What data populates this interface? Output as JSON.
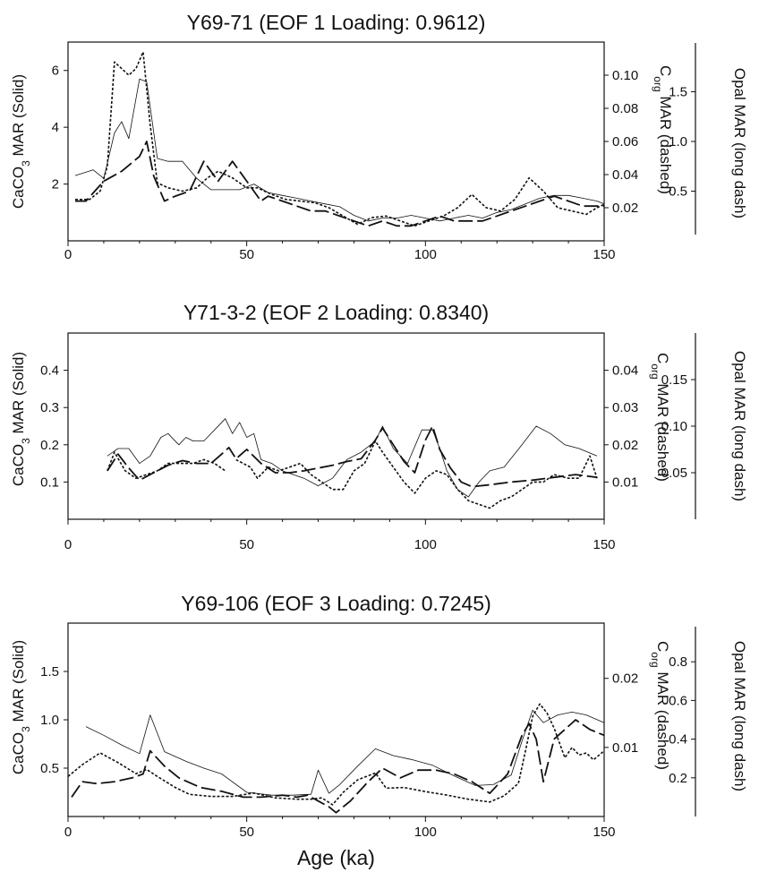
{
  "chart_data": [
    {
      "type": "line",
      "title": "Y69-71  (EOF 1 Loading:  0.9612)",
      "xlim": [
        0,
        150
      ],
      "xticks": [
        0,
        50,
        100,
        150
      ],
      "axes": {
        "left": {
          "label": "CaCO3 MAR  (Solid)",
          "ticks": [
            2,
            4,
            6
          ],
          "range": [
            0,
            7
          ]
        },
        "right1": {
          "label": "Corg  MAR (dashed)",
          "ticks": [
            0.02,
            0.04,
            0.06,
            0.08,
            0.1
          ],
          "tick_labels": [
            "0.02",
            "0.04",
            "0.06",
            "0.08",
            "0.10"
          ],
          "range": [
            0,
            0.12
          ]
        },
        "right2": {
          "label": "Opal  MAR  (long dash)",
          "ticks": [
            0.5,
            1.0,
            1.5
          ],
          "tick_labels": [
            "0.5",
            "1.0",
            "1.5"
          ],
          "range": [
            0,
            2.0
          ]
        }
      },
      "series": [
        {
          "style": "solid",
          "axis": "left",
          "x": [
            2,
            7,
            10,
            13,
            15,
            17,
            20,
            22,
            25,
            28,
            32,
            36,
            40,
            44,
            48,
            52,
            56,
            60,
            64,
            68,
            72,
            76,
            80,
            84,
            88,
            92,
            96,
            100,
            104,
            108,
            112,
            116,
            120,
            124,
            128,
            132,
            136,
            140,
            144,
            148,
            150
          ],
          "y": [
            2.3,
            2.5,
            2.2,
            3.8,
            4.2,
            3.6,
            5.7,
            5.6,
            2.9,
            2.8,
            2.8,
            2.2,
            1.8,
            1.8,
            1.8,
            2.0,
            1.7,
            1.6,
            1.5,
            1.4,
            1.3,
            1.2,
            0.9,
            0.7,
            0.8,
            0.8,
            0.9,
            0.8,
            0.7,
            0.8,
            0.9,
            0.8,
            1.0,
            1.1,
            1.3,
            1.5,
            1.6,
            1.6,
            1.5,
            1.4,
            1.3
          ]
        },
        {
          "style": "dotted",
          "axis": "right1",
          "x": [
            2,
            6,
            9,
            11,
            13,
            15,
            17,
            19,
            21,
            23,
            25,
            28,
            32,
            36,
            39,
            42,
            46,
            50,
            53,
            57,
            61,
            65,
            69,
            73,
            77,
            81,
            85,
            89,
            93,
            97,
            101,
            105,
            109,
            113,
            117,
            121,
            125,
            129,
            133,
            137,
            141,
            145,
            148,
            150
          ],
          "y": [
            0.025,
            0.025,
            0.03,
            0.045,
            0.108,
            0.104,
            0.1,
            0.104,
            0.114,
            0.07,
            0.035,
            0.032,
            0.03,
            0.032,
            0.038,
            0.042,
            0.038,
            0.032,
            0.032,
            0.028,
            0.025,
            0.024,
            0.023,
            0.02,
            0.015,
            0.01,
            0.014,
            0.015,
            0.012,
            0.009,
            0.012,
            0.015,
            0.02,
            0.028,
            0.02,
            0.018,
            0.025,
            0.038,
            0.03,
            0.02,
            0.018,
            0.016,
            0.02,
            0.022
          ]
        },
        {
          "style": "longdash",
          "axis": "right2",
          "x": [
            2,
            5,
            10,
            15,
            20,
            22,
            24,
            27,
            30,
            34,
            38,
            42,
            46,
            50,
            54,
            56,
            60,
            64,
            68,
            72,
            76,
            80,
            84,
            88,
            92,
            96,
            100,
            104,
            108,
            112,
            116,
            120,
            124,
            128,
            132,
            136,
            140,
            144,
            148,
            150
          ],
          "y": [
            0.4,
            0.4,
            0.6,
            0.7,
            0.85,
            1.0,
            0.65,
            0.4,
            0.45,
            0.5,
            0.8,
            0.6,
            0.8,
            0.6,
            0.4,
            0.45,
            0.4,
            0.35,
            0.3,
            0.3,
            0.25,
            0.2,
            0.15,
            0.2,
            0.15,
            0.15,
            0.2,
            0.25,
            0.2,
            0.2,
            0.2,
            0.25,
            0.3,
            0.35,
            0.4,
            0.45,
            0.4,
            0.35,
            0.35,
            0.35
          ]
        }
      ]
    },
    {
      "type": "line",
      "title": "Y71-3-2   (EOF 2 Loading:  0.8340)",
      "xlim": [
        0,
        150
      ],
      "xticks": [
        0,
        50,
        100,
        150
      ],
      "axes": {
        "left": {
          "label": "CaCO3 MAR  (Solid)",
          "ticks": [
            0.1,
            0.2,
            0.3,
            0.4
          ],
          "tick_labels": [
            "0.1",
            "0.2",
            "0.3",
            "0.4"
          ],
          "range": [
            0,
            0.5
          ]
        },
        "right1": {
          "label": "Corg  MAR (dashed)",
          "ticks": [
            0.01,
            0.02,
            0.03,
            0.04
          ],
          "tick_labels": [
            "0.01",
            "0.02",
            "0.03",
            "0.04"
          ],
          "range": [
            0,
            0.05
          ]
        },
        "right2": {
          "label": "Opal  MAR  (long dash)",
          "ticks": [
            0.05,
            0.1,
            0.15
          ],
          "tick_labels": [
            "0.05",
            "0.10",
            "0.15"
          ],
          "range": [
            0,
            0.2
          ]
        }
      },
      "series": [
        {
          "style": "solid",
          "axis": "left",
          "x": [
            11,
            14,
            17,
            20,
            23,
            26,
            28,
            31,
            33,
            35,
            38,
            41,
            44,
            46,
            48,
            50,
            52,
            54,
            57,
            60,
            63,
            66,
            70,
            74,
            78,
            82,
            86,
            88,
            91,
            95,
            99,
            102,
            104,
            106,
            109,
            112,
            115,
            118,
            122,
            127,
            131,
            135,
            139,
            143,
            148
          ],
          "y": [
            0.17,
            0.19,
            0.19,
            0.15,
            0.17,
            0.22,
            0.23,
            0.2,
            0.22,
            0.21,
            0.21,
            0.24,
            0.27,
            0.23,
            0.26,
            0.22,
            0.23,
            0.16,
            0.15,
            0.13,
            0.12,
            0.11,
            0.09,
            0.11,
            0.16,
            0.18,
            0.21,
            0.25,
            0.19,
            0.15,
            0.24,
            0.24,
            0.19,
            0.13,
            0.08,
            0.06,
            0.1,
            0.13,
            0.14,
            0.2,
            0.25,
            0.23,
            0.2,
            0.19,
            0.17
          ]
        },
        {
          "style": "dotted",
          "axis": "right1",
          "x": [
            11,
            13,
            16,
            19,
            22,
            25,
            28,
            31,
            35,
            38,
            41,
            44
          ],
          "y": [
            0.013,
            0.018,
            0.013,
            0.011,
            0.012,
            0.013,
            0.015,
            0.015,
            0.015,
            0.016,
            0.015,
            0.013
          ]
        },
        {
          "style": "dotted",
          "axis": "right1",
          "x": [
            47,
            49,
            51,
            53,
            56,
            59,
            62,
            65,
            68,
            71,
            74,
            77,
            80,
            83,
            86,
            88,
            91,
            94,
            97,
            100,
            103,
            106,
            109,
            112,
            115,
            118,
            121,
            124,
            127,
            130,
            133,
            136,
            140,
            143,
            146,
            148
          ],
          "y": [
            0.016,
            0.015,
            0.014,
            0.011,
            0.014,
            0.013,
            0.014,
            0.015,
            0.012,
            0.01,
            0.008,
            0.008,
            0.013,
            0.015,
            0.021,
            0.018,
            0.014,
            0.01,
            0.007,
            0.011,
            0.013,
            0.012,
            0.008,
            0.005,
            0.004,
            0.003,
            0.005,
            0.006,
            0.008,
            0.01,
            0.01,
            0.012,
            0.011,
            0.011,
            0.017,
            0.011
          ]
        },
        {
          "style": "longdash",
          "axis": "right2",
          "x": [
            11,
            14,
            17,
            20,
            24,
            28,
            32,
            36,
            40,
            43,
            45,
            47,
            50,
            54,
            58,
            62,
            66,
            70,
            74,
            78,
            82,
            86,
            88,
            91,
            94,
            97,
            100,
            102,
            104,
            107,
            110,
            113,
            118,
            124,
            130,
            136,
            142,
            148
          ],
          "y": [
            0.052,
            0.07,
            0.055,
            0.042,
            0.05,
            0.058,
            0.063,
            0.06,
            0.06,
            0.07,
            0.077,
            0.065,
            0.075,
            0.06,
            0.05,
            0.05,
            0.052,
            0.055,
            0.058,
            0.062,
            0.065,
            0.085,
            0.098,
            0.08,
            0.062,
            0.05,
            0.085,
            0.1,
            0.075,
            0.055,
            0.04,
            0.035,
            0.037,
            0.04,
            0.042,
            0.045,
            0.048,
            0.045
          ]
        }
      ]
    },
    {
      "type": "line",
      "title": "Y69-106  (EOF 3 Loading:  0.7245)",
      "xlim": [
        0,
        150
      ],
      "xticks": [
        0,
        50,
        100,
        150
      ],
      "xlabel": "Age (ka)",
      "axes": {
        "left": {
          "label": "CaCO3 MAR  (Solid)",
          "ticks": [
            0.5,
            1.0,
            1.5
          ],
          "tick_labels": [
            "0.5",
            "1.0",
            "1.5"
          ],
          "range": [
            0,
            2.0
          ]
        },
        "right1": {
          "label": "Corg  MAR (dashed)",
          "ticks": [
            0.01,
            0.02
          ],
          "tick_labels": [
            "0.01",
            "0.02"
          ],
          "range": [
            0,
            0.028
          ]
        },
        "right2": {
          "label": "Opal  MAR  (long dash)",
          "ticks": [
            0.2,
            0.4,
            0.6,
            0.8
          ],
          "tick_labels": [
            "0.2",
            "0.4",
            "0.6",
            "0.8"
          ],
          "range": [
            0,
            1.0
          ]
        }
      },
      "series": [
        {
          "style": "solid",
          "axis": "left",
          "x": [
            5,
            10,
            15,
            20,
            23,
            27,
            33,
            38,
            43,
            50,
            57,
            63,
            68,
            70,
            73,
            76,
            81,
            86,
            91,
            96,
            102,
            108,
            114,
            119,
            124,
            127,
            130,
            133,
            137,
            141,
            145,
            150
          ],
          "y": [
            0.93,
            0.84,
            0.74,
            0.65,
            1.05,
            0.67,
            0.57,
            0.5,
            0.44,
            0.25,
            0.22,
            0.22,
            0.23,
            0.48,
            0.24,
            0.33,
            0.52,
            0.7,
            0.63,
            0.59,
            0.53,
            0.42,
            0.32,
            0.33,
            0.43,
            0.78,
            1.1,
            0.97,
            1.05,
            1.08,
            1.05,
            0.97
          ]
        },
        {
          "style": "dotted",
          "axis": "right1",
          "x": [
            0,
            4,
            9,
            14,
            19,
            22,
            25,
            30,
            34,
            40,
            46,
            52,
            58,
            64,
            68,
            71,
            74,
            77,
            81,
            86,
            89,
            94,
            100,
            106,
            112,
            118,
            122,
            126,
            128,
            130,
            132,
            134,
            136,
            139,
            141,
            143,
            145,
            147,
            150
          ],
          "y": [
            0.0058,
            0.0075,
            0.0092,
            0.0078,
            0.0062,
            0.0068,
            0.0058,
            0.0042,
            0.0032,
            0.0029,
            0.0029,
            0.0034,
            0.0027,
            0.0025,
            0.0025,
            0.0027,
            0.0017,
            0.0035,
            0.0053,
            0.0063,
            0.0041,
            0.0042,
            0.0036,
            0.0031,
            0.0025,
            0.0021,
            0.003,
            0.0048,
            0.0095,
            0.0145,
            0.0163,
            0.015,
            0.0128,
            0.0085,
            0.01,
            0.0089,
            0.0092,
            0.0082,
            0.0095
          ]
        },
        {
          "style": "longdash",
          "axis": "right2",
          "x": [
            1,
            4,
            8,
            13,
            18,
            21,
            23,
            27,
            31,
            37,
            43,
            49,
            54,
            60,
            64,
            67,
            70,
            73,
            75,
            79,
            84,
            88,
            93,
            98,
            103,
            108,
            113,
            118,
            123,
            127,
            129,
            131,
            133,
            136,
            139,
            142,
            146,
            150
          ],
          "y": [
            0.1,
            0.18,
            0.17,
            0.18,
            0.2,
            0.22,
            0.34,
            0.26,
            0.2,
            0.15,
            0.13,
            0.1,
            0.1,
            0.11,
            0.1,
            0.11,
            0.08,
            0.05,
            0.02,
            0.08,
            0.18,
            0.25,
            0.2,
            0.24,
            0.24,
            0.22,
            0.18,
            0.12,
            0.22,
            0.42,
            0.48,
            0.4,
            0.18,
            0.4,
            0.45,
            0.5,
            0.45,
            0.42
          ]
        }
      ]
    }
  ]
}
